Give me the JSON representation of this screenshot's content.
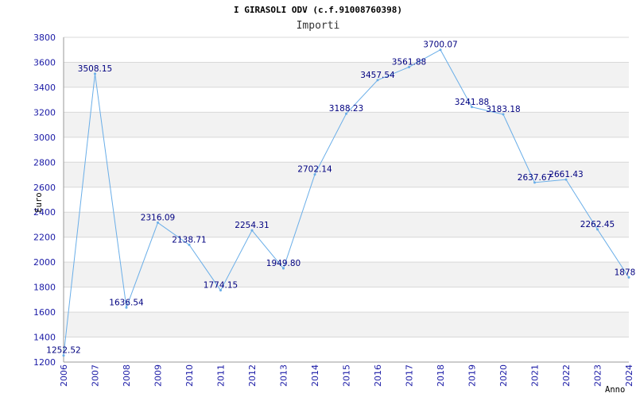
{
  "chart_data": {
    "type": "line",
    "title": "I GIRASOLI ODV (c.f.91008760398)",
    "subtitle": "Importi",
    "xlabel": "Anno",
    "ylabel": "Euro",
    "categories": [
      "2006",
      "2007",
      "2008",
      "2009",
      "2010",
      "2011",
      "2012",
      "2013",
      "2014",
      "2015",
      "2016",
      "2017",
      "2018",
      "2019",
      "2020",
      "2021",
      "2022",
      "2023",
      "2024"
    ],
    "series": [
      {
        "values": [
          1252.52,
          3508.15,
          1636.54,
          2316.09,
          2138.71,
          1774.15,
          2254.31,
          1949.8,
          2702.14,
          3188.23,
          3457.54,
          3561.88,
          3700.07,
          3241.88,
          3183.18,
          2637.67,
          2661.43,
          2262.45,
          1878.0
        ],
        "labels": [
          "1252.52",
          "3508.15",
          "1636.54",
          "2316.09",
          "2138.71",
          "1774.15",
          "2254.31",
          "1949.80",
          "2702.14",
          "3188.23",
          "3457.54",
          "3561.88",
          "3700.07",
          "3241.88",
          "3183.18",
          "2637.67",
          "2661.43",
          "2262.45",
          "1878.0"
        ]
      }
    ],
    "ylim": [
      1200,
      3800
    ],
    "yticks": [
      1200,
      1400,
      1600,
      1800,
      2000,
      2200,
      2400,
      2600,
      2800,
      3000,
      3200,
      3400,
      3600,
      3800
    ],
    "grid": true,
    "colors": {
      "line": "#6aaee8",
      "band": "#f2f2f2",
      "gridline": "#d8d8d8",
      "tick": "#1a1aa6",
      "label": "#000080"
    }
  }
}
